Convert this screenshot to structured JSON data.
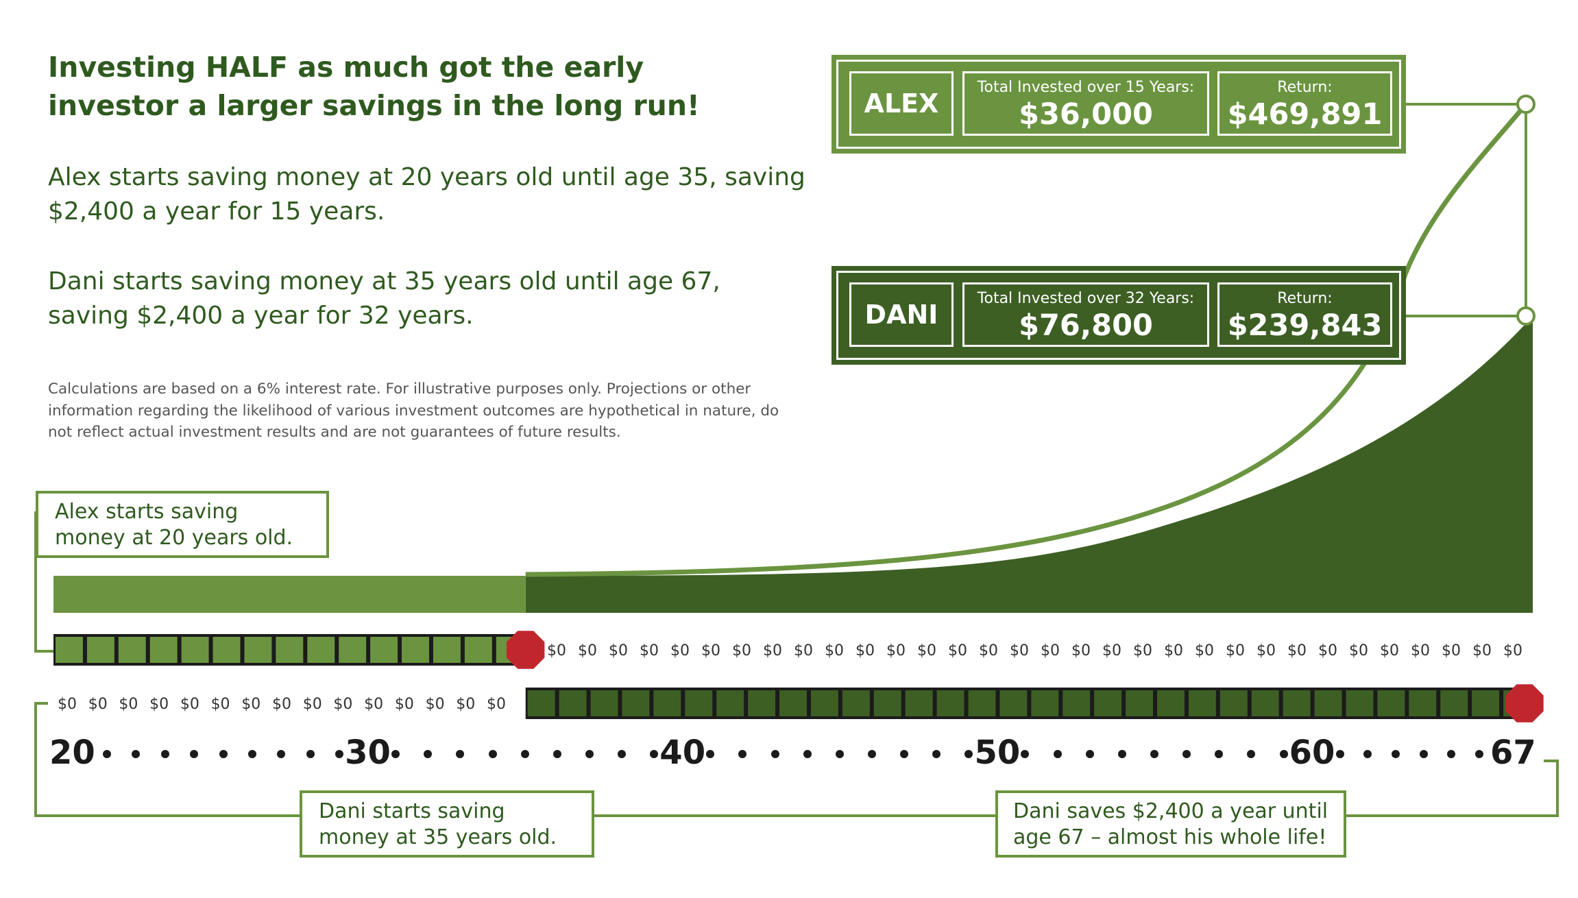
{
  "headline": "Investing HALF as much got the early investor a larger savings in the long run!",
  "paragraphs": {
    "alex": "Alex starts saving money at 20 years old until age 35, saving $2,400 a year for 15 years.",
    "dani": "Dani starts saving money at 35 years old until age 67, saving $2,400 a year for 32 years."
  },
  "disclaimer": "Calculations are based on a 6% interest rate. For illustrative purposes only. Projections or other information regarding the likelihood of various investment outcomes are hypothetical in nature, do not reflect actual investment results and are not guarantees of future results.",
  "cards": {
    "alex": {
      "name": "ALEX",
      "invested_label": "Total Invested over 15 Years:",
      "invested_value": "$36,000",
      "return_label": "Return:",
      "return_value": "$469,891",
      "color": "#6b9440"
    },
    "dani": {
      "name": "DANI",
      "invested_label": "Total Invested over 32 Years:",
      "invested_value": "$76,800",
      "return_label": "Return:",
      "return_value": "$239,843",
      "color": "#3d5f24"
    }
  },
  "callouts": {
    "alex_start": "Alex starts saving money at 20 years old.",
    "dani_start": "Dani starts saving money at 35 years old.",
    "dani_end": "Dani saves $2,400 a year until age 67 – almost his whole life!"
  },
  "timeline": {
    "start_age": 20,
    "end_age": 67,
    "age_labels": [
      "20",
      "30",
      "40",
      "50",
      "60",
      "67"
    ],
    "zero_label": "$0",
    "alex_contribution_years": 15,
    "dani_contribution_years": 32,
    "alex_zero_years": 32,
    "dani_zero_years": 15
  },
  "colors": {
    "alex": "#6b9440",
    "dani": "#3d5f24",
    "text": "#2f5a1f",
    "stop": "#c0272d"
  }
}
